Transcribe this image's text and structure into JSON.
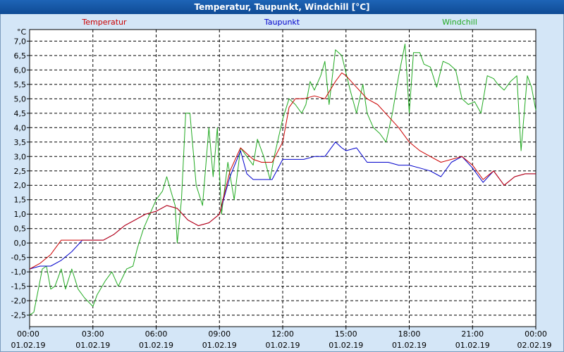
{
  "window": {
    "title": "Temperatur, Taupunkt, Windchill [°C]"
  },
  "chart_data": {
    "type": "line",
    "title": "Temperatur, Taupunkt, Windchill [°C]",
    "ylabel": "°C",
    "ylim": [
      -2.9,
      7.4
    ],
    "xlim": [
      0,
      24
    ],
    "grid": true,
    "legend_placement": "top",
    "y_ticks": [
      "7,0",
      "6,5",
      "6,0",
      "5,5",
      "5,0",
      "4,5",
      "4,0",
      "3,5",
      "3,0",
      "2,5",
      "2,0",
      "1,5",
      "1,0",
      "0,5",
      "0,0",
      "-0,5",
      "-1,0",
      "-1,5",
      "-2,0",
      "-2,5"
    ],
    "x_ticks": [
      {
        "time": "00:00",
        "date": "01.02.19"
      },
      {
        "time": "03:00",
        "date": "01.02.19"
      },
      {
        "time": "06:00",
        "date": "01.02.19"
      },
      {
        "time": "09:00",
        "date": "01.02.19"
      },
      {
        "time": "12:00",
        "date": "01.02.19"
      },
      {
        "time": "15:00",
        "date": "01.02.19"
      },
      {
        "time": "18:00",
        "date": "01.02.19"
      },
      {
        "time": "21:00",
        "date": "01.02.19"
      },
      {
        "time": "00:00",
        "date": "02.02.19"
      }
    ],
    "colors": {
      "temperatur": "#cc0000",
      "taupunkt": "#0000cc",
      "windchill": "#22aa22",
      "grid": "#000000",
      "background": "#ffffff"
    },
    "series": [
      {
        "name": "Temperatur",
        "color": "#cc0000",
        "x": [
          0,
          0.5,
          1,
          1.5,
          2,
          2.5,
          3,
          3.5,
          4,
          4.5,
          5,
          5.5,
          6,
          6.5,
          7,
          7.5,
          8,
          8.5,
          9,
          9.5,
          10,
          10.3,
          10.6,
          11,
          11.5,
          12,
          12.3,
          12.6,
          13,
          13.5,
          14,
          14.5,
          14.8,
          15,
          15.5,
          16,
          16.5,
          17,
          17.5,
          18,
          18.5,
          19,
          19.5,
          20,
          20.5,
          21,
          21.5,
          22,
          22.5,
          23,
          23.5,
          24
        ],
        "y": [
          -0.9,
          -0.7,
          -0.4,
          0.1,
          0.1,
          0.1,
          0.1,
          0.1,
          0.3,
          0.6,
          0.8,
          1.0,
          1.1,
          1.3,
          1.2,
          0.8,
          0.6,
          0.7,
          1.0,
          2.5,
          3.3,
          3.1,
          2.9,
          2.8,
          2.8,
          3.5,
          4.7,
          5.0,
          5.0,
          5.1,
          5.0,
          5.6,
          5.9,
          5.8,
          5.4,
          5.0,
          4.8,
          4.4,
          4.0,
          3.5,
          3.2,
          3.0,
          2.8,
          2.9,
          3.0,
          2.7,
          2.2,
          2.5,
          2.0,
          2.3,
          2.4,
          2.4
        ]
      },
      {
        "name": "Taupunkt",
        "color": "#0000cc",
        "x": [
          0,
          0.5,
          1,
          1.5,
          2,
          2.5,
          3,
          3.5,
          4,
          4.5,
          5,
          5.5,
          6,
          6.5,
          7,
          7.5,
          8,
          8.5,
          9,
          9.5,
          10,
          10.3,
          10.6,
          11,
          11.5,
          12,
          12.3,
          12.6,
          13,
          13.5,
          14,
          14.5,
          14.8,
          15,
          15.5,
          16,
          16.5,
          17,
          17.5,
          18,
          18.5,
          19,
          19.5,
          20,
          20.5,
          21,
          21.5,
          22,
          22.5,
          23,
          23.5,
          24
        ],
        "y": [
          -0.9,
          -0.8,
          -0.8,
          -0.6,
          -0.3,
          0.1,
          0.1,
          0.1,
          0.3,
          0.6,
          0.8,
          1.0,
          1.1,
          1.3,
          1.2,
          0.8,
          0.6,
          0.7,
          1.0,
          2.3,
          3.2,
          2.4,
          2.2,
          2.2,
          2.2,
          2.9,
          2.9,
          2.9,
          2.9,
          3.0,
          3.0,
          3.5,
          3.3,
          3.2,
          3.3,
          2.8,
          2.8,
          2.8,
          2.7,
          2.7,
          2.6,
          2.5,
          2.3,
          2.8,
          3.0,
          2.6,
          2.1,
          2.5,
          2.0,
          2.3,
          2.4,
          2.4
        ]
      },
      {
        "name": "Windchill",
        "color": "#22aa22",
        "x": [
          0,
          0.2,
          0.6,
          0.8,
          1.0,
          1.2,
          1.5,
          1.7,
          2.0,
          2.3,
          2.6,
          3.0,
          3.2,
          3.6,
          3.9,
          4.2,
          4.6,
          4.9,
          5.1,
          5.4,
          5.7,
          6.0,
          6.3,
          6.5,
          6.7,
          6.9,
          7.0,
          7.2,
          7.4,
          7.6,
          7.9,
          8.2,
          8.5,
          8.7,
          8.9,
          9.1,
          9.4,
          9.7,
          10.0,
          10.3,
          10.6,
          10.8,
          11.1,
          11.4,
          11.6,
          12.0,
          12.3,
          12.6,
          12.9,
          13.1,
          13.3,
          13.5,
          13.8,
          14.0,
          14.2,
          14.5,
          14.8,
          15.0,
          15.2,
          15.5,
          15.8,
          16.0,
          16.3,
          16.6,
          16.9,
          17.2,
          17.5,
          17.8,
          18.0,
          18.2,
          18.5,
          18.7,
          19.0,
          19.3,
          19.6,
          19.9,
          20.2,
          20.5,
          20.8,
          21.1,
          21.4,
          21.7,
          22.0,
          22.2,
          22.5,
          22.8,
          23.1,
          23.3,
          23.6,
          23.8,
          24.0
        ],
        "y": [
          -2.5,
          -2.4,
          -0.9,
          -0.8,
          -1.6,
          -1.5,
          -0.9,
          -1.6,
          -0.9,
          -1.6,
          -1.9,
          -2.2,
          -1.8,
          -1.3,
          -1.0,
          -1.5,
          -0.9,
          -0.8,
          -0.2,
          0.5,
          1.0,
          1.5,
          1.8,
          2.3,
          1.8,
          1.3,
          0.0,
          1.5,
          4.5,
          4.5,
          2.0,
          1.3,
          4.0,
          2.3,
          4.0,
          1.0,
          2.8,
          1.5,
          3.3,
          3.0,
          2.7,
          3.6,
          3.0,
          2.2,
          3.0,
          4.3,
          5.0,
          4.8,
          4.5,
          4.8,
          5.6,
          5.3,
          5.8,
          6.3,
          4.8,
          6.7,
          6.5,
          5.9,
          5.3,
          4.5,
          5.5,
          4.5,
          4.0,
          3.8,
          3.5,
          4.5,
          5.8,
          6.9,
          4.5,
          6.6,
          6.6,
          6.2,
          6.1,
          5.4,
          6.3,
          6.2,
          6.0,
          5.0,
          4.8,
          4.9,
          4.5,
          5.8,
          5.7,
          5.5,
          5.3,
          5.6,
          5.8,
          3.2,
          5.8,
          5.4,
          4.6
        ]
      }
    ]
  }
}
